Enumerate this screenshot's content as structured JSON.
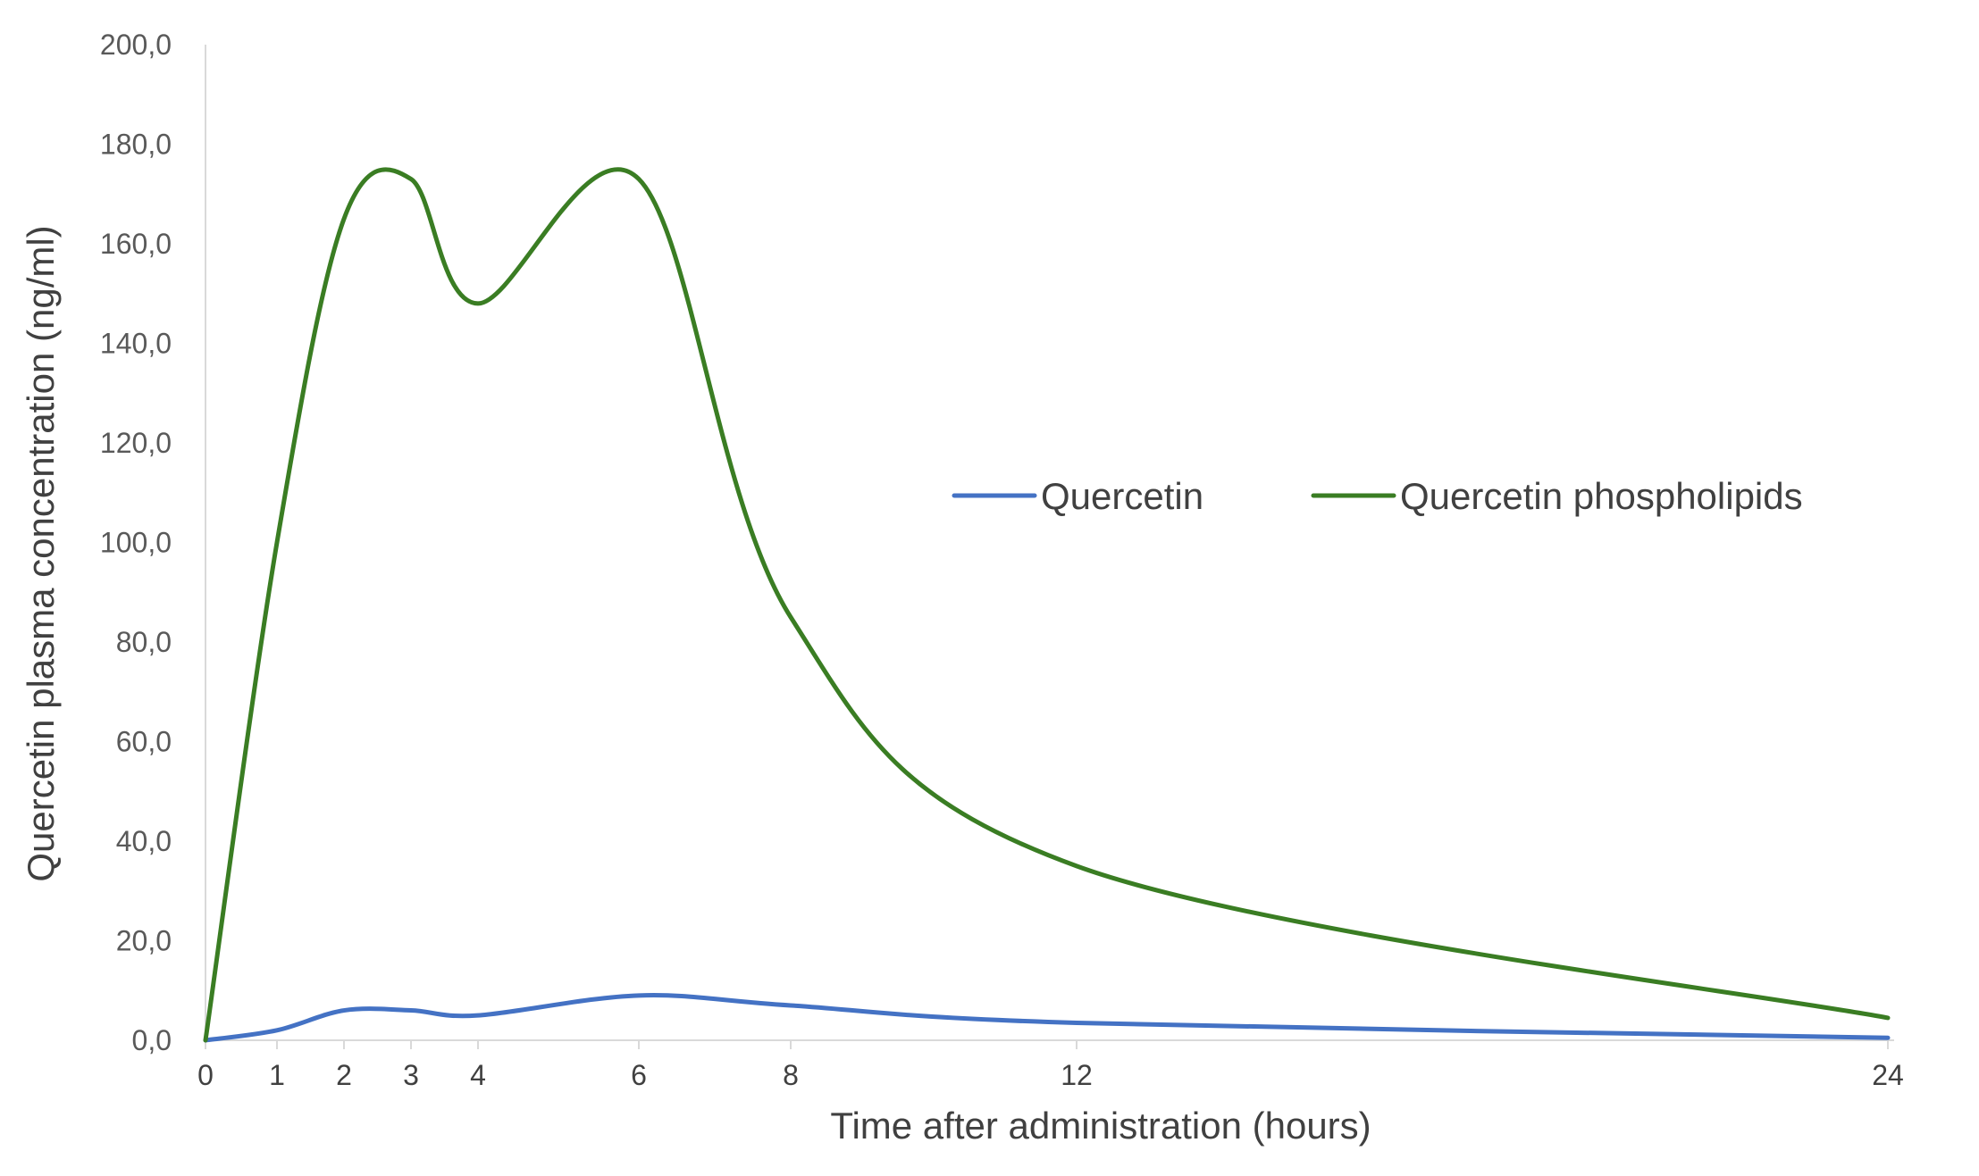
{
  "chart_data": {
    "type": "line",
    "title": "",
    "xlabel": "Time after administration (hours)",
    "ylabel": "Quercetin plasma concentration (ng/ml)",
    "xlim": [
      0,
      24
    ],
    "ylim": [
      0,
      200
    ],
    "x_ticks": [
      0,
      1,
      2,
      3,
      4,
      6,
      8,
      12,
      24
    ],
    "x_tick_labels": [
      "0",
      "1",
      "2",
      "3",
      "4",
      "6",
      "8",
      "12",
      "24"
    ],
    "y_ticks": [
      0,
      20,
      40,
      60,
      80,
      100,
      120,
      140,
      160,
      180,
      200
    ],
    "y_tick_labels": [
      "0,0",
      "20,0",
      "40,0",
      "60,0",
      "80,0",
      "100,0",
      "120,0",
      "140,0",
      "160,0",
      "180,0",
      "200,0"
    ],
    "grid": false,
    "legend_position": "right-middle",
    "series": [
      {
        "name": "Quercetin",
        "color": "#4472C4",
        "x": [
          0,
          1,
          2,
          3,
          4,
          6,
          8,
          12,
          24
        ],
        "y": [
          0,
          2,
          6,
          6,
          5,
          9,
          7,
          3.5,
          0.5
        ]
      },
      {
        "name": "Quercetin phospholipids",
        "color": "#3A7D23",
        "x": [
          0,
          1,
          2,
          3,
          4,
          6,
          8,
          12,
          24
        ],
        "y": [
          0,
          100,
          165,
          173,
          148,
          173,
          85,
          35,
          4.5
        ]
      }
    ]
  }
}
